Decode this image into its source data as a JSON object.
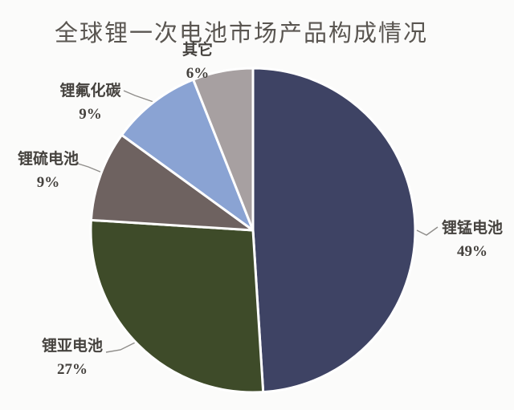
{
  "title": "全球锂一次电池市场产品构成情况",
  "colors": {
    "background": "#fbfbfa",
    "title_text": "#5a5651",
    "label_text": "#45423e",
    "leader_line": "#8f8d8a",
    "slice_gap": "#ffffff"
  },
  "chart_data": {
    "type": "pie",
    "title": "全球锂一次电池市场产品构成情况",
    "start_angle_deg": 0,
    "direction": "clockwise",
    "legend": "none",
    "label_style": "outside-with-leader-lines",
    "slices": [
      {
        "id": "li-mno2",
        "label": "锂锰电池",
        "value": 49,
        "pct_label": "49%",
        "color": "#3e4364"
      },
      {
        "id": "li-socl2",
        "label": "锂亚电池",
        "value": 27,
        "pct_label": "27%",
        "color": "#3e4b29"
      },
      {
        "id": "li-s",
        "label": "锂硫电池",
        "value": 9,
        "pct_label": "9%",
        "color": "#6e6260"
      },
      {
        "id": "li-cfx",
        "label": "锂氟化碳",
        "value": 9,
        "pct_label": "9%",
        "color": "#8aa3d3"
      },
      {
        "id": "other",
        "label": "其它",
        "value": 6,
        "pct_label": "6%",
        "color": "#a7a0a1"
      }
    ]
  }
}
